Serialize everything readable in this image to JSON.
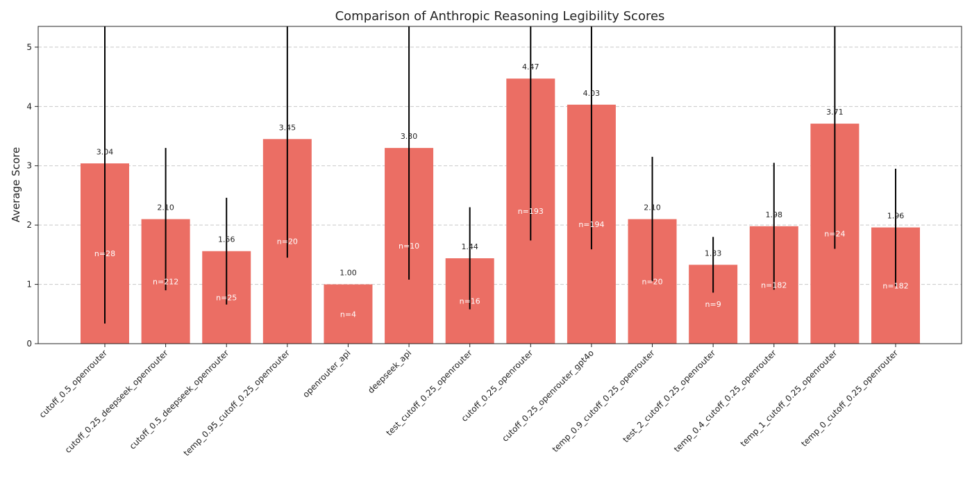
{
  "chart_data": {
    "type": "bar",
    "title": "Comparison of Anthropic Reasoning Legibility Scores",
    "xlabel": "",
    "ylabel": "Average Score",
    "ylim": [
      0,
      5.35
    ],
    "yticks": [
      0,
      1,
      2,
      3,
      4,
      5
    ],
    "grid": "y-dashed",
    "bar_color": "#eb6e64",
    "categories": [
      "cutoff_0.5_openrouter",
      "cutoff_0.25_deepseek_openrouter",
      "cutoff_0.5_deepseek_openrouter",
      "temp_0.95_cutoff_0.25_openrouter",
      "openrouter_api",
      "deepseek_api",
      "test_cutoff_0.25_openrouter",
      "cutoff_0.25_openrouter",
      "cutoff_0.25_openrouter_gpt4o",
      "temp_0.9_cutoff_0.25_openrouter",
      "test_2_cutoff_0.25_openrouter",
      "temp_0.4_cutoff_0.25_openrouter",
      "temp_1_cutoff_0.25_openrouter",
      "temp_0_cutoff_0.25_openrouter"
    ],
    "values": [
      3.04,
      2.1,
      1.56,
      3.45,
      1.0,
      3.3,
      1.44,
      4.47,
      4.03,
      2.1,
      1.33,
      1.98,
      3.71,
      1.96
    ],
    "value_labels": [
      "3.04",
      "2.10",
      "1.56",
      "3.45",
      "1.00",
      "3.30",
      "1.44",
      "4.47",
      "4.03",
      "2.10",
      "1.33",
      "1.98",
      "3.71",
      "1.96"
    ],
    "error": [
      2.7,
      1.2,
      0.9,
      2.0,
      0,
      2.22,
      0.86,
      2.73,
      2.44,
      1.05,
      0.47,
      1.07,
      2.11,
      0.99
    ],
    "n_labels": [
      "n=28",
      "n=212",
      "n=25",
      "n=20",
      "n=4",
      "n=10",
      "n=16",
      "n=193",
      "n=194",
      "n=20",
      "n=9",
      "n=182",
      "n=24",
      "n=182"
    ]
  }
}
